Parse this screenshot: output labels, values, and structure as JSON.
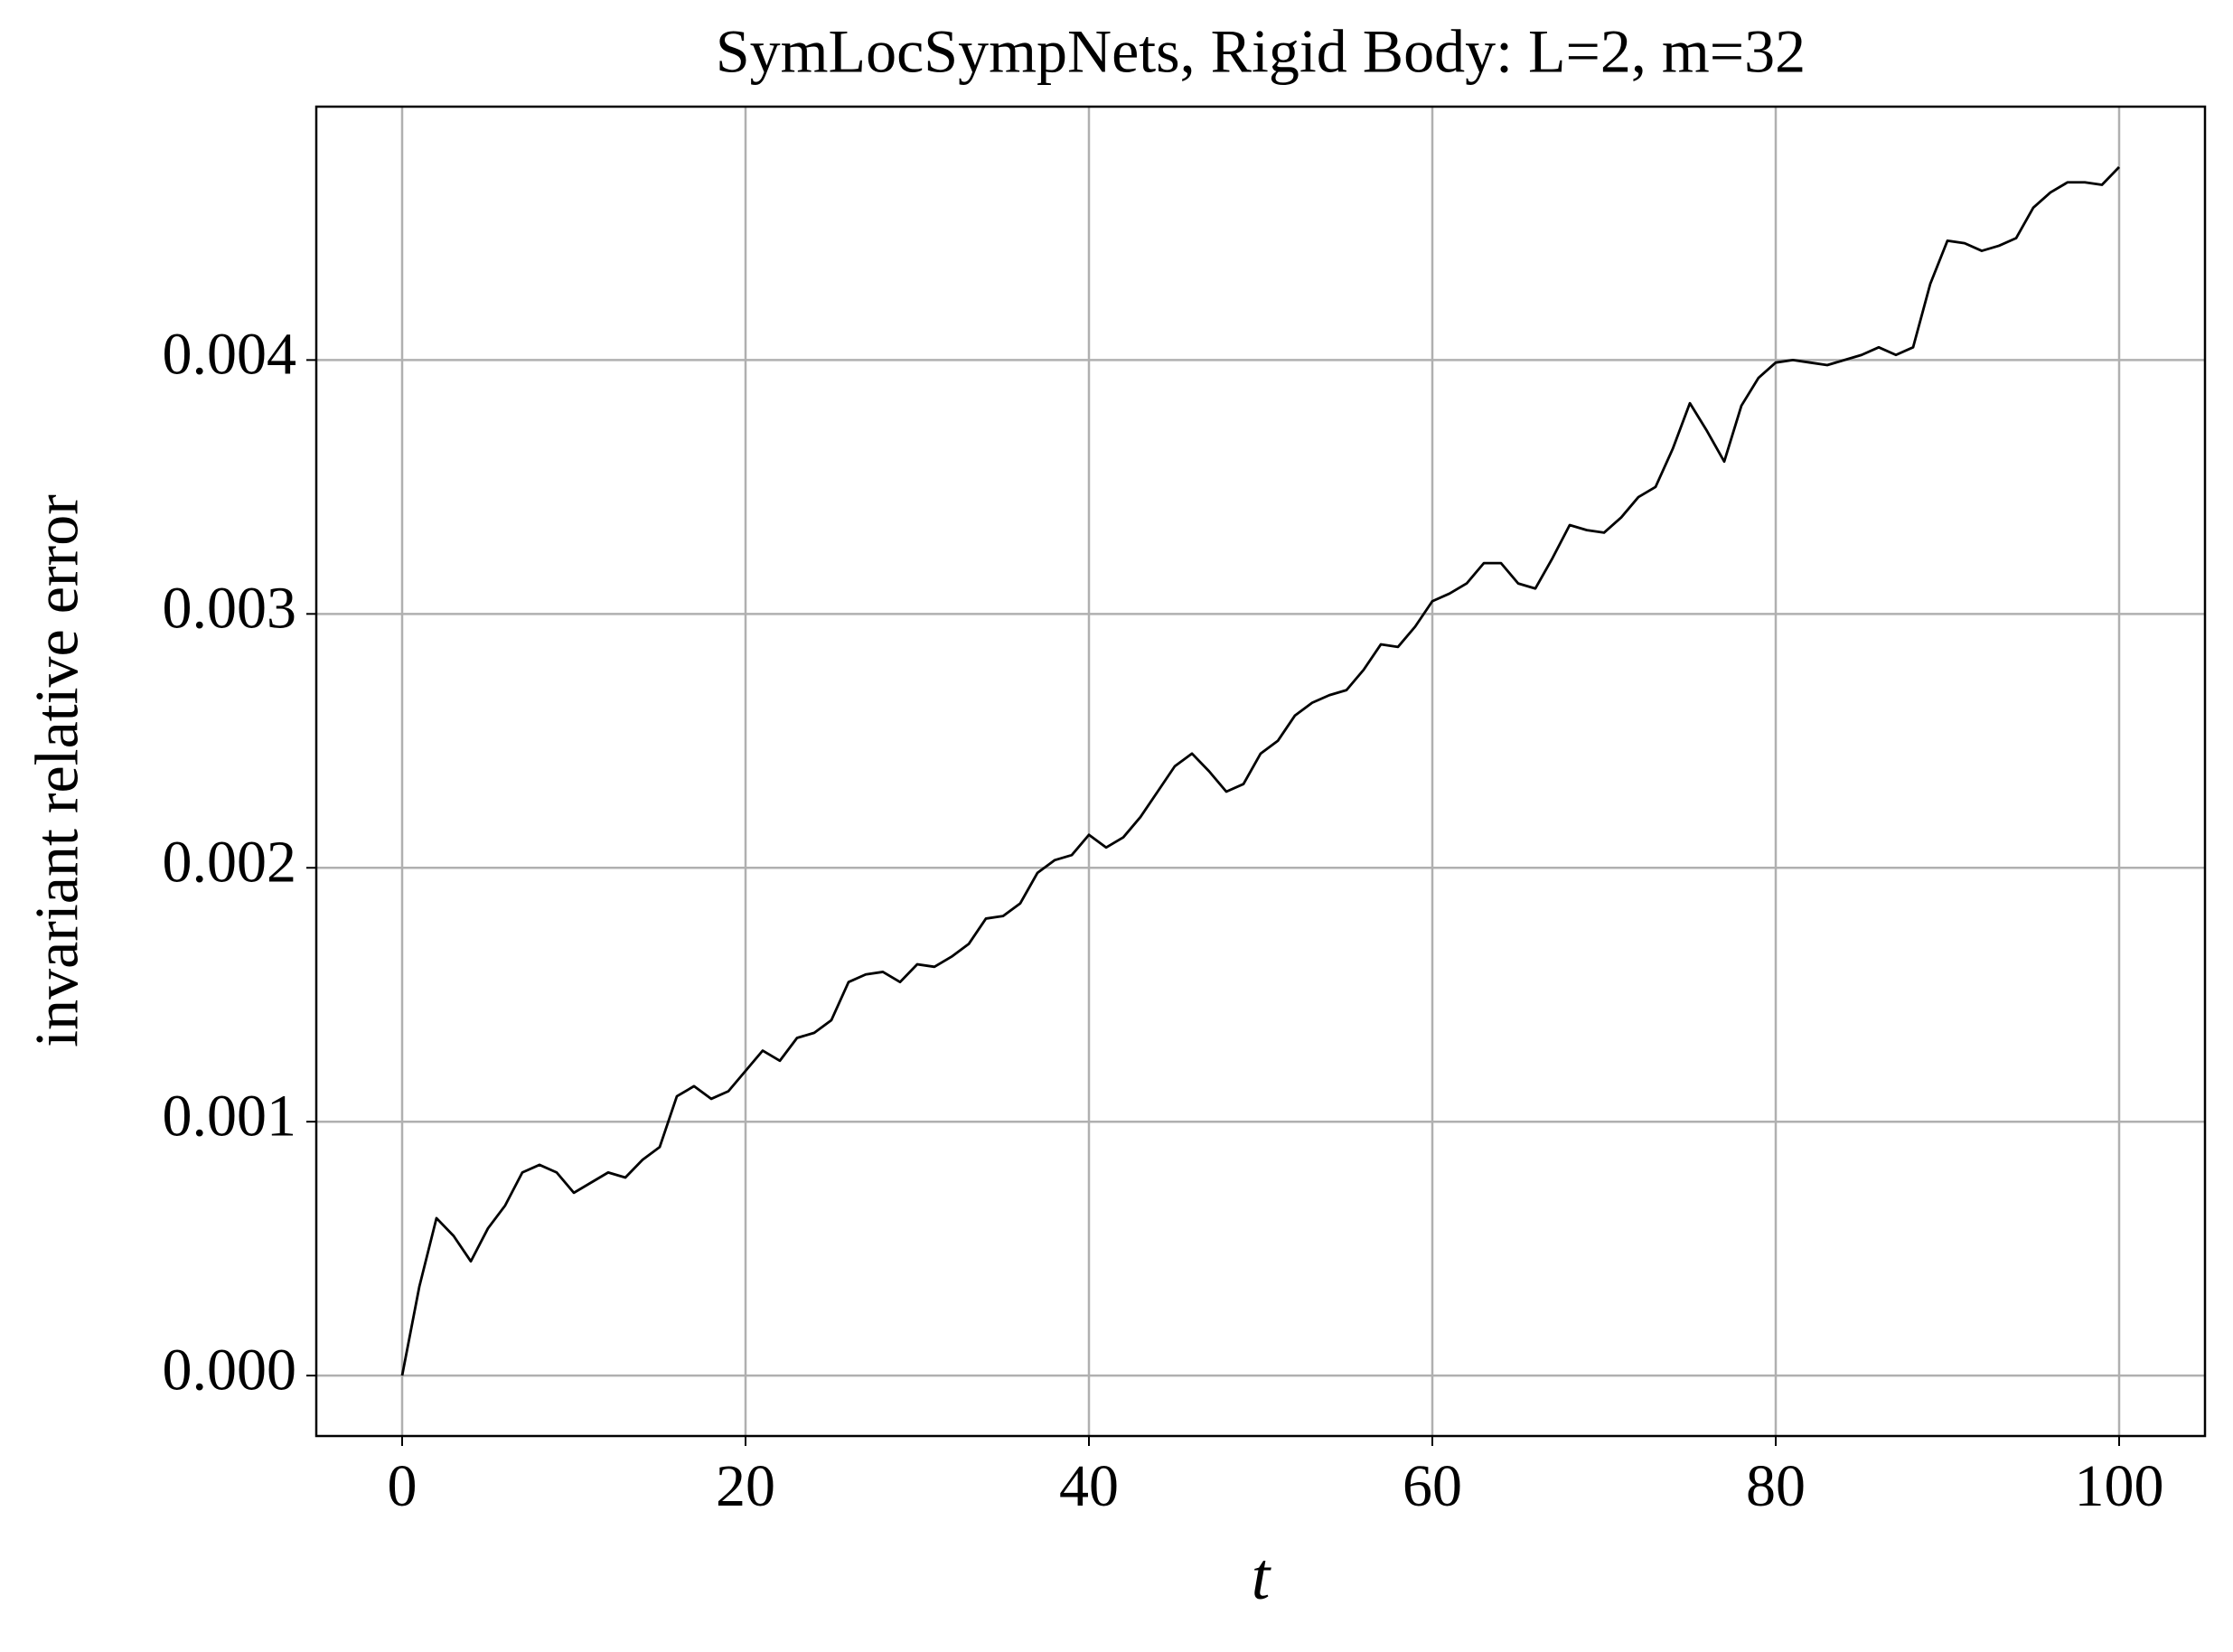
{
  "chart_data": {
    "type": "line",
    "title": "SymLocSympNets, Rigid Body: L=2, m=32",
    "xlabel": "t",
    "ylabel": "invariant relative error",
    "x": [
      0,
      1,
      2,
      3,
      4,
      5,
      6,
      7,
      8,
      9,
      10,
      11,
      12,
      13,
      14,
      15,
      16,
      17,
      18,
      19,
      20,
      21,
      22,
      23,
      24,
      25,
      26,
      27,
      28,
      29,
      30,
      31,
      32,
      33,
      34,
      35,
      36,
      37,
      38,
      39,
      40,
      41,
      42,
      43,
      44,
      45,
      46,
      47,
      48,
      49,
      50,
      51,
      52,
      53,
      54,
      55,
      56,
      57,
      58,
      59,
      60,
      61,
      62,
      63,
      64,
      65,
      66,
      67,
      68,
      69,
      70,
      71,
      72,
      73,
      74,
      75,
      76,
      77,
      78,
      79,
      80,
      81,
      82,
      83,
      84,
      85,
      86,
      87,
      88,
      89,
      90,
      91,
      92,
      93,
      94,
      95,
      96,
      97,
      98,
      99,
      100
    ],
    "values": [
      0,
      0.00035,
      0.00062,
      0.00055,
      0.00045,
      0.00058,
      0.00067,
      0.0008,
      0.00083,
      0.0008,
      0.00072,
      0.00076,
      0.0008,
      0.00078,
      0.00085,
      0.0009,
      0.0011,
      0.00114,
      0.00109,
      0.00112,
      0.0012,
      0.00128,
      0.00124,
      0.00133,
      0.00135,
      0.0014,
      0.00155,
      0.00158,
      0.00159,
      0.00155,
      0.00162,
      0.00161,
      0.00165,
      0.0017,
      0.0018,
      0.00181,
      0.00186,
      0.00198,
      0.00203,
      0.00205,
      0.00213,
      0.00208,
      0.00212,
      0.0022,
      0.0023,
      0.0024,
      0.00245,
      0.00238,
      0.0023,
      0.00233,
      0.00245,
      0.0025,
      0.0026,
      0.00265,
      0.00268,
      0.0027,
      0.00278,
      0.00288,
      0.00287,
      0.00295,
      0.00305,
      0.00308,
      0.00312,
      0.0032,
      0.0032,
      0.00312,
      0.0031,
      0.00322,
      0.00335,
      0.00333,
      0.00332,
      0.00338,
      0.00346,
      0.0035,
      0.00365,
      0.00383,
      0.00372,
      0.0036,
      0.00382,
      0.00393,
      0.00399,
      0.004,
      0.00399,
      0.00398,
      0.004,
      0.00402,
      0.00405,
      0.00402,
      0.00405,
      0.0043,
      0.00447,
      0.00446,
      0.00443,
      0.00445,
      0.00448,
      0.0046,
      0.00466,
      0.0047,
      0.0047,
      0.00469,
      0.00476
    ],
    "color": "#000000",
    "xlim": [
      -5,
      105
    ],
    "ylim": [
      -0.000238,
      0.004998
    ],
    "xticks": [
      0,
      20,
      40,
      60,
      80,
      100
    ],
    "yticks": [
      {
        "value": 0,
        "label": "0.000"
      },
      {
        "value": 0.001,
        "label": "0.001"
      },
      {
        "value": 0.002,
        "label": "0.002"
      },
      {
        "value": 0.003,
        "label": "0.003"
      },
      {
        "value": 0.004,
        "label": "0.004"
      }
    ],
    "grid": true
  }
}
